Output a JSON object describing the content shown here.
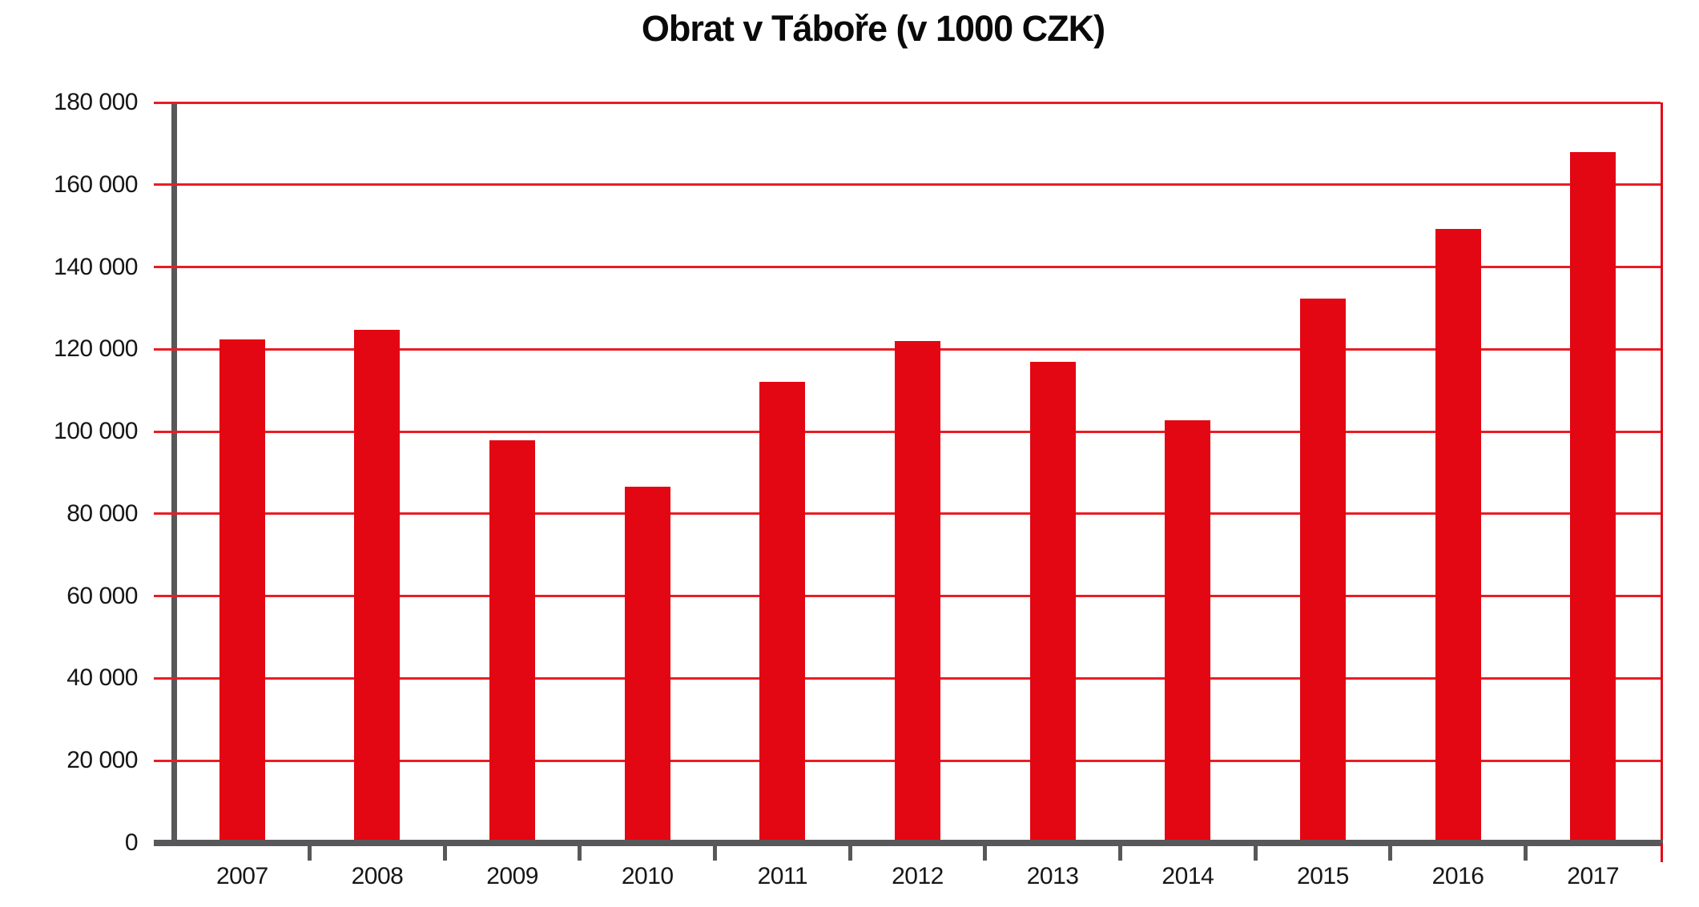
{
  "chart_data": {
    "type": "bar",
    "title": "Obrat v Táboře (v 1000 CZK)",
    "categories": [
      "2007",
      "2008",
      "2009",
      "2010",
      "2011",
      "2012",
      "2013",
      "2014",
      "2015",
      "2016",
      "2017"
    ],
    "values": [
      122400,
      124700,
      97800,
      86600,
      112000,
      122100,
      116900,
      102800,
      132400,
      149200,
      168000
    ],
    "xlabel": "",
    "ylabel": "",
    "ylim": [
      0,
      180000
    ],
    "ytick_step": 20000,
    "ytick_labels": [
      "0",
      "20 000",
      "40 000",
      "60 000",
      "80 000",
      "100 000",
      "120 000",
      "140 000",
      "160 000",
      "180 000"
    ],
    "grid": true,
    "legend": false,
    "colors": {
      "bar": "#e30613",
      "gridline": "#e81d25",
      "axis": "#58585a",
      "border": "#e30613",
      "text": "#161616"
    }
  }
}
